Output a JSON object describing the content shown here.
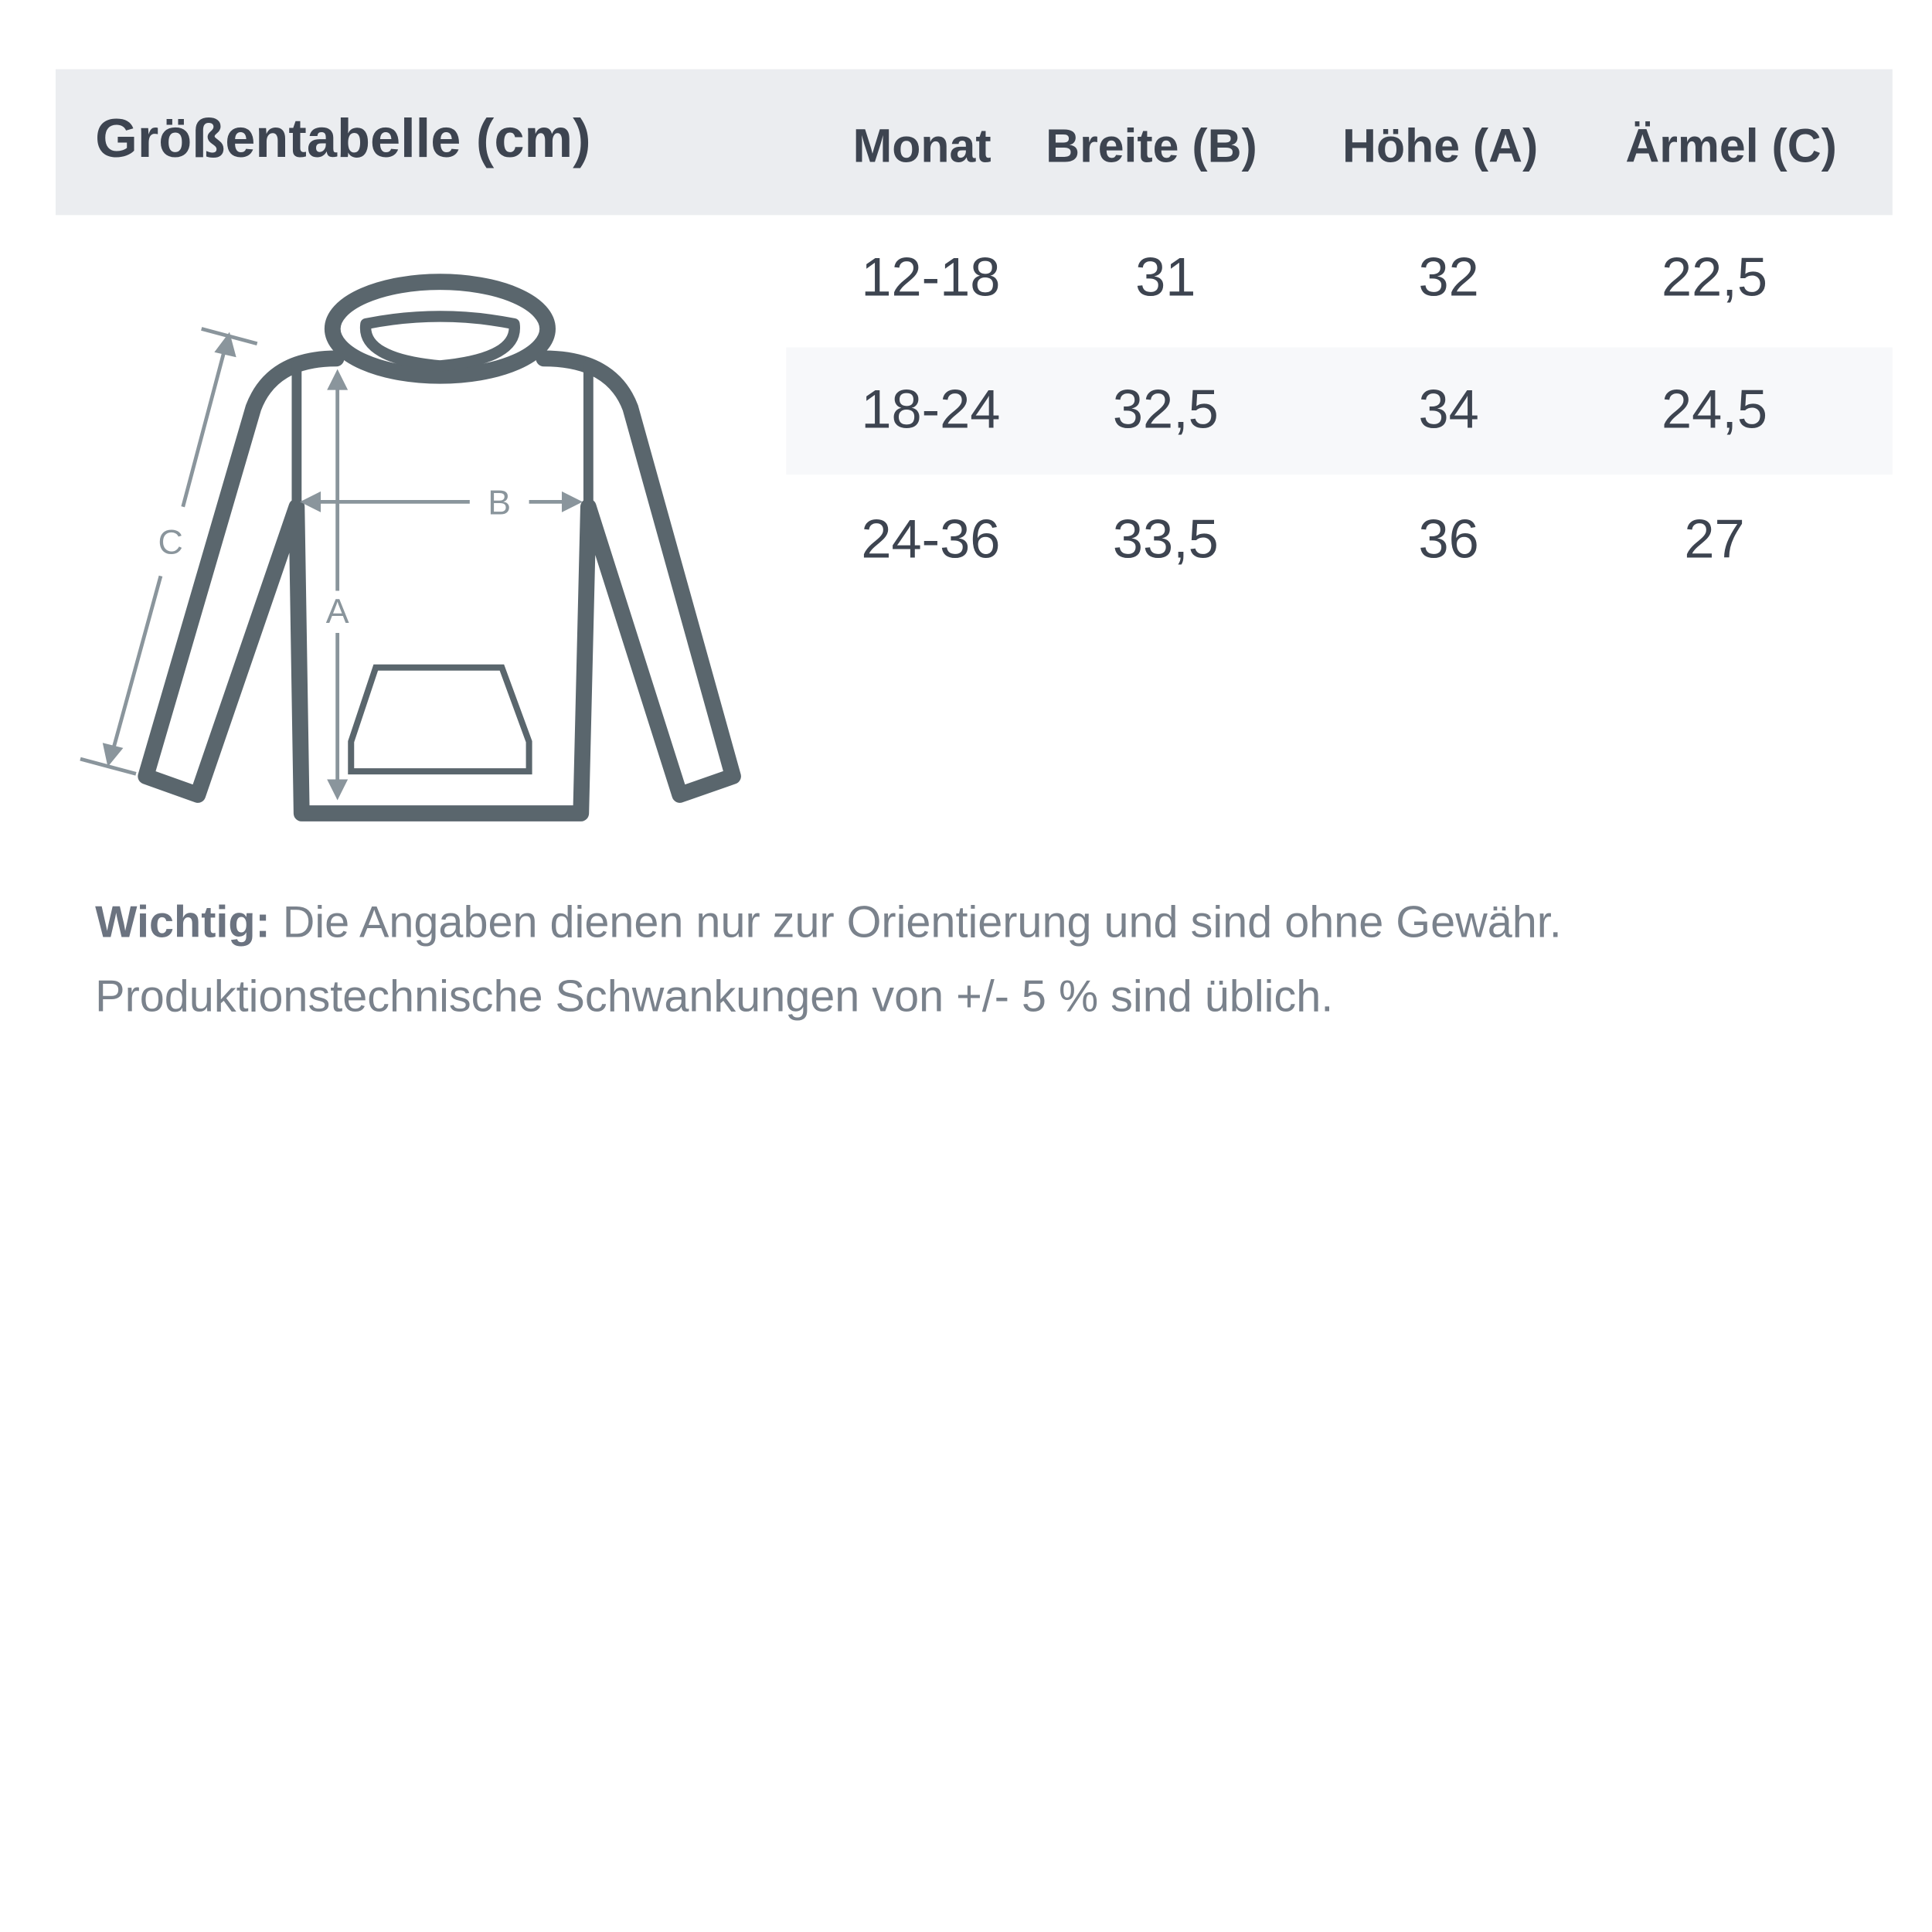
{
  "title": "Größentabelle (cm)",
  "columns": [
    "Monat",
    "Breite (B)",
    "Höhe (A)",
    "Ärmel (C)"
  ],
  "rows": [
    [
      "12-18",
      "31",
      "32",
      "22,5"
    ],
    [
      "18-24",
      "32,5",
      "34",
      "24,5"
    ],
    [
      "24-36",
      "33,5",
      "36",
      "27"
    ]
  ],
  "diagram": {
    "label_a": "A",
    "label_b": "B",
    "label_c": "C"
  },
  "note": {
    "bold": "Wichtig:",
    "line1": " Die Angaben dienen nur zur Orientierung und sind ohne Gewähr.",
    "line2": "Produktionstechnische Schwankungen von +/- 5 % sind üblich."
  },
  "colors": {
    "header_bg": "#ebedf0",
    "text": "#3d4450",
    "stroke": "#5a666d",
    "arrow": "#8a959c",
    "note": "#7a828c"
  }
}
